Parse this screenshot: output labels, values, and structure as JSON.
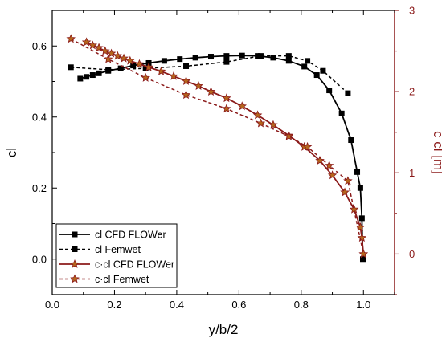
{
  "chart_data": {
    "type": "line",
    "xlabel": "y/b/2",
    "ylabel": "cl",
    "y2label": "c cl [m]",
    "xlim": [
      0,
      1.1
    ],
    "ylim": [
      -0.1,
      0.7
    ],
    "y2lim": [
      -0.5,
      3
    ],
    "xticks": [
      "0.0",
      "0.2",
      "0.4",
      "0.6",
      "0.8",
      "1.0"
    ],
    "yticks": [
      "0.0",
      "0.2",
      "0.4",
      "0.6"
    ],
    "y2ticks": [
      "0",
      "1",
      "2",
      "3"
    ],
    "grid": false,
    "legend_position": "bottom-left",
    "colors": {
      "cl": "#000000",
      "ccl": "#8b1a1a",
      "ccl_marker": "#b5651d"
    },
    "series": [
      {
        "name": "cl CFD FLOWer",
        "axis": "left",
        "style": "solid",
        "marker": "square",
        "x": [
          0.09,
          0.11,
          0.13,
          0.15,
          0.18,
          0.22,
          0.26,
          0.31,
          0.36,
          0.41,
          0.46,
          0.51,
          0.56,
          0.61,
          0.66,
          0.71,
          0.76,
          0.81,
          0.85,
          0.89,
          0.93,
          0.96,
          0.98,
          0.99,
          0.995,
          0.998
        ],
        "y": [
          0.508,
          0.513,
          0.518,
          0.523,
          0.53,
          0.537,
          0.545,
          0.552,
          0.558,
          0.563,
          0.567,
          0.57,
          0.572,
          0.573,
          0.572,
          0.567,
          0.558,
          0.542,
          0.518,
          0.475,
          0.41,
          0.335,
          0.245,
          0.2,
          0.115,
          0.0
        ]
      },
      {
        "name": "cl Femwet",
        "axis": "left",
        "style": "dashed",
        "marker": "square",
        "x": [
          0.06,
          0.18,
          0.3,
          0.43,
          0.56,
          0.67,
          0.76,
          0.82,
          0.87,
          0.95
        ],
        "y": [
          0.54,
          0.533,
          0.537,
          0.543,
          0.555,
          0.572,
          0.572,
          0.558,
          0.53,
          0.467
        ]
      },
      {
        "name": "c·cl CFD FLOWer",
        "axis": "right",
        "style": "solid",
        "marker": "star",
        "x": [
          0.11,
          0.13,
          0.15,
          0.17,
          0.19,
          0.21,
          0.23,
          0.25,
          0.28,
          0.31,
          0.35,
          0.39,
          0.43,
          0.47,
          0.51,
          0.56,
          0.61,
          0.66,
          0.71,
          0.76,
          0.81,
          0.86,
          0.9,
          0.94,
          0.97,
          0.99,
          0.995,
          1.0
        ],
        "y": [
          2.61,
          2.57,
          2.54,
          2.5,
          2.47,
          2.44,
          2.41,
          2.38,
          2.34,
          2.3,
          2.25,
          2.19,
          2.13,
          2.07,
          2.0,
          1.92,
          1.82,
          1.71,
          1.59,
          1.46,
          1.32,
          1.15,
          0.97,
          0.76,
          0.55,
          0.33,
          0.2,
          0.0
        ]
      },
      {
        "name": "c·cl Femwet",
        "axis": "right",
        "style": "dashed",
        "marker": "star",
        "x": [
          0.06,
          0.18,
          0.3,
          0.43,
          0.56,
          0.67,
          0.76,
          0.82,
          0.89,
          0.95,
          1.0
        ],
        "y": [
          2.65,
          2.4,
          2.17,
          1.96,
          1.79,
          1.61,
          1.45,
          1.32,
          1.09,
          0.9,
          0.0
        ]
      }
    ]
  }
}
